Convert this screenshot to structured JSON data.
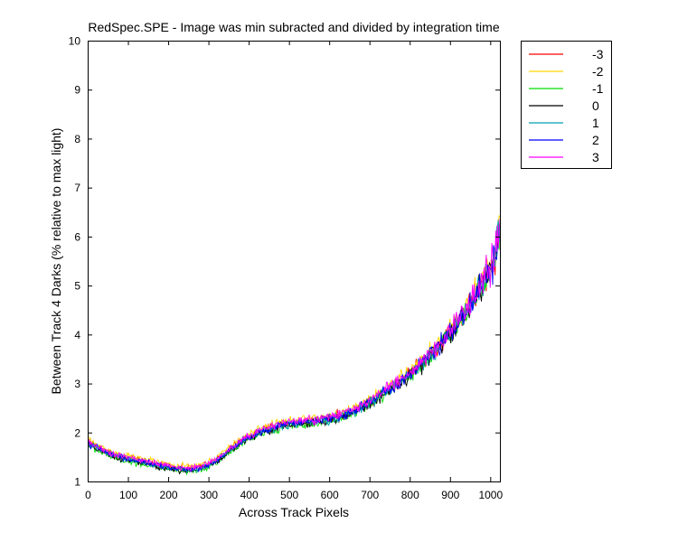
{
  "chart_data": {
    "type": "line",
    "title": "RedSpec.SPE - Image was min subracted and divided by integration time",
    "xlabel": "Across Track Pixels",
    "ylabel": "Between Track 4 Darks (% relative to max light)",
    "xlim": [
      0,
      1024
    ],
    "ylim": [
      1,
      10
    ],
    "xticks": [
      0,
      100,
      200,
      300,
      400,
      500,
      600,
      700,
      800,
      900,
      1000
    ],
    "yticks": [
      1,
      2,
      3,
      4,
      5,
      6,
      7,
      8,
      9,
      10
    ],
    "grid": false,
    "legend_position": "outside-top-right",
    "trend": {
      "x": [
        0,
        25,
        50,
        75,
        100,
        125,
        150,
        175,
        200,
        225,
        250,
        275,
        300,
        325,
        350,
        375,
        400,
        425,
        450,
        475,
        500,
        525,
        550,
        575,
        600,
        625,
        650,
        675,
        700,
        725,
        750,
        775,
        800,
        825,
        850,
        875,
        900,
        925,
        950,
        975,
        1000,
        1010,
        1024
      ],
      "y": [
        1.8,
        1.68,
        1.58,
        1.51,
        1.46,
        1.42,
        1.38,
        1.33,
        1.29,
        1.26,
        1.25,
        1.27,
        1.34,
        1.46,
        1.62,
        1.78,
        1.9,
        2.0,
        2.08,
        2.14,
        2.18,
        2.2,
        2.22,
        2.24,
        2.28,
        2.33,
        2.4,
        2.5,
        2.62,
        2.75,
        2.9,
        3.05,
        3.2,
        3.38,
        3.58,
        3.8,
        4.05,
        4.3,
        4.6,
        4.95,
        5.35,
        5.6,
        6.2
      ]
    },
    "series": [
      {
        "name": "-3",
        "color": "#ff0000",
        "offset": 0.02
      },
      {
        "name": "-2",
        "color": "#ffd700",
        "offset": 0.06
      },
      {
        "name": "-1",
        "color": "#00dd00",
        "offset": -0.05
      },
      {
        "name": "0",
        "color": "#000000",
        "offset": -0.03
      },
      {
        "name": "1",
        "color": "#00a0b0",
        "offset": -0.01
      },
      {
        "name": "2",
        "color": "#0000ff",
        "offset": 0.0
      },
      {
        "name": "3",
        "color": "#ff00ff",
        "offset": 0.03
      }
    ]
  }
}
